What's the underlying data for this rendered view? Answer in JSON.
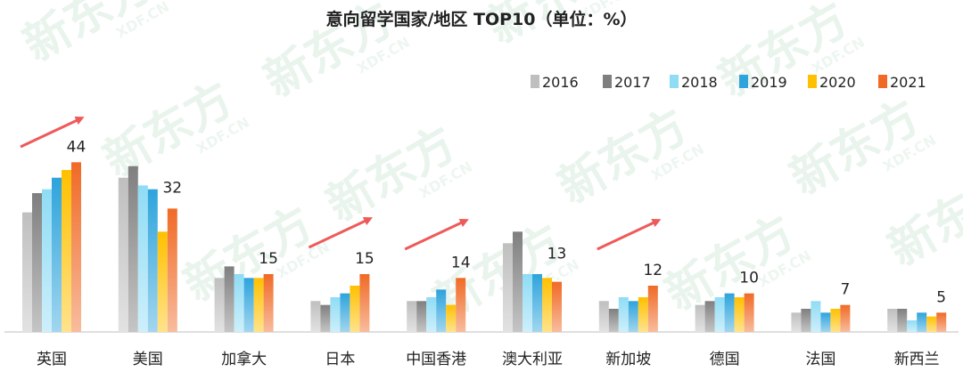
{
  "watermark": {
    "brand": "新东方",
    "domain": "XDF.CN"
  },
  "chart_data": {
    "type": "bar",
    "title": "意向留学国家/地区 TOP10（单位：%）",
    "legend_position": "top-right",
    "grid": false,
    "categories": [
      "英国",
      "美国",
      "加拿大",
      "日本",
      "中国香港",
      "澳大利亚",
      "新加坡",
      "德国",
      "法国",
      "新西兰"
    ],
    "series": [
      {
        "name": "2016",
        "color": "#bfbfbf",
        "values": [
          31,
          40,
          14,
          8,
          8,
          23,
          8,
          7,
          5,
          6
        ]
      },
      {
        "name": "2017",
        "color": "#7f7f7f",
        "values": [
          36,
          43,
          17,
          7,
          8,
          26,
          6,
          8,
          6,
          6
        ]
      },
      {
        "name": "2018",
        "color": "#8fdcf5",
        "values": [
          37,
          38,
          15,
          9,
          9,
          15,
          9,
          9,
          8,
          3
        ]
      },
      {
        "name": "2019",
        "color": "#2ea3dc",
        "values": [
          40,
          37,
          14,
          10,
          11,
          15,
          8,
          10,
          5,
          5
        ]
      },
      {
        "name": "2020",
        "color": "#ffc000",
        "values": [
          42,
          26,
          14,
          12,
          7,
          14,
          9,
          9,
          6,
          4
        ]
      },
      {
        "name": "2021",
        "color": "#f06a26",
        "values": [
          44,
          32,
          15,
          15,
          14,
          13,
          12,
          10,
          7,
          5
        ]
      }
    ],
    "data_labels": {
      "series": "2021",
      "values": [
        "44",
        "32",
        "15",
        "15",
        "14",
        "13",
        "12",
        "10",
        "7",
        "5"
      ]
    },
    "trend_arrows": [
      "英国",
      "日本",
      "中国香港",
      "新加坡"
    ],
    "ylim": [
      0,
      45
    ]
  }
}
